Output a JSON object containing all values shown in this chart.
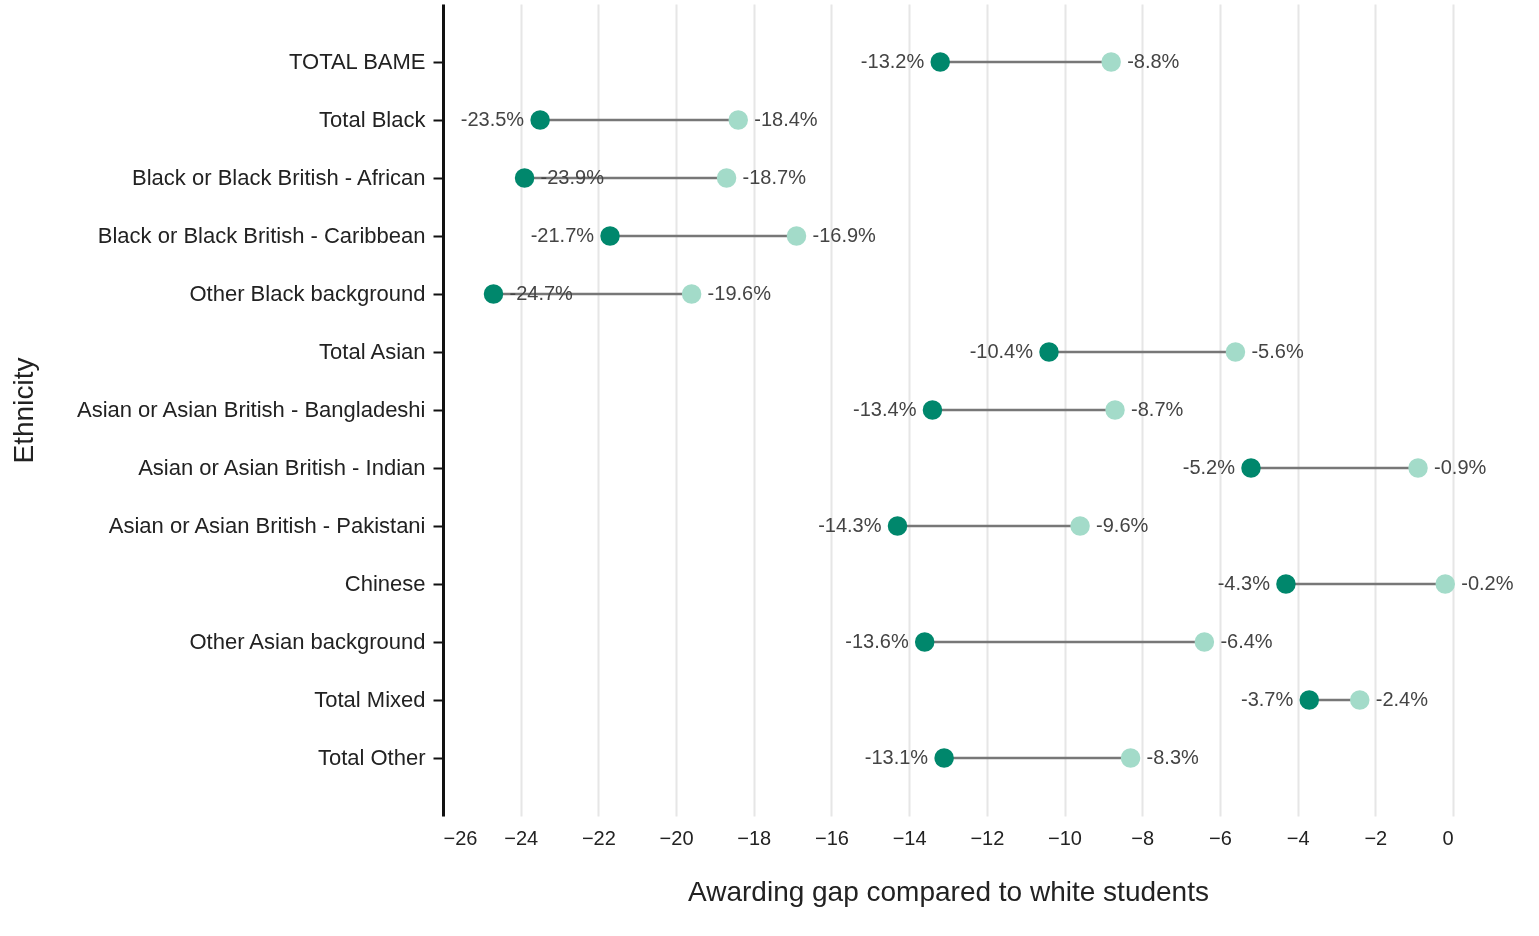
{
  "chart_data": {
    "type": "scatter",
    "orientation": "horizontal",
    "xlabel": "Awarding gap compared to white students",
    "ylabel": "Ethnicity",
    "categories": [
      "TOTAL BAME",
      "Total Black",
      "Black or Black British - African",
      "Black or Black British - Caribbean",
      "Other Black background",
      "Total Asian",
      "Asian or Asian British - Bangladeshi",
      "Asian or Asian British - Indian",
      "Asian or Asian British - Pakistani",
      "Chinese",
      "Other Asian background",
      "Total Mixed",
      "Total Other"
    ],
    "series": [
      {
        "color": "#00876c",
        "values": [
          -13.2,
          -23.5,
          -23.9,
          -21.7,
          -24.7,
          -10.4,
          -13.4,
          -5.2,
          -14.3,
          -4.3,
          -13.6,
          -3.7,
          -13.1
        ],
        "value_labels": [
          "-13.2%",
          "-23.5%",
          "-23.9%",
          "-21.7%",
          "-24.7%",
          "-10.4%",
          "-13.4%",
          "-5.2%",
          "-14.3%",
          "-4.3%",
          "-13.6%",
          "-3.7%",
          "-13.1%"
        ]
      },
      {
        "color": "#a3dbc9",
        "values": [
          -8.8,
          -18.4,
          -18.7,
          -16.9,
          -19.6,
          -5.6,
          -8.7,
          -0.9,
          -9.6,
          -0.2,
          -6.4,
          -2.4,
          -8.3
        ],
        "value_labels": [
          "-8.8%",
          "-18.4%",
          "-18.7%",
          "-16.9%",
          "-19.6%",
          "-5.6%",
          "-8.7%",
          "-0.9%",
          "-9.6%",
          "-0.2%",
          "-6.4%",
          "-2.4%",
          "-8.3%"
        ]
      }
    ],
    "xlim": [
      -26,
      0
    ],
    "xticks": [
      -26,
      -24,
      -22,
      -20,
      -18,
      -16,
      -14,
      -12,
      -10,
      -8,
      -6,
      -4,
      -2,
      0
    ],
    "grid": "x",
    "marker": "circle"
  }
}
